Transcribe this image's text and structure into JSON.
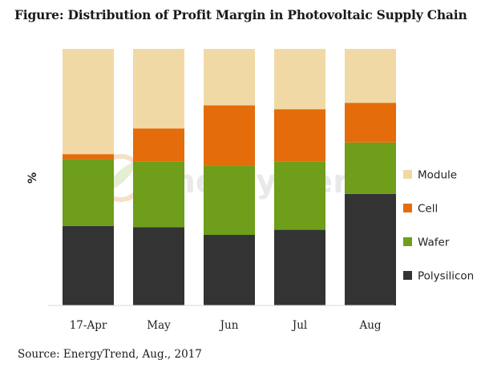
{
  "title": "Figure: Distribution of Profit Margin in Photovoltaic Supply Chain",
  "source": "Source: EnergyTrend, Aug., 2017",
  "watermark": "EnergyTrend",
  "chart_data": {
    "type": "bar",
    "stacked": true,
    "percent": true,
    "categories": [
      "17-Apr",
      "May",
      "Jun",
      "Jul",
      "Aug"
    ],
    "series": [
      {
        "name": "Polysilicon",
        "color": "#333333",
        "values": [
          31,
          30.5,
          27.5,
          29.5,
          43.5
        ]
      },
      {
        "name": "Wafer",
        "color": "#6e9e1a",
        "values": [
          26,
          25.5,
          27,
          26.5,
          20
        ]
      },
      {
        "name": "Cell",
        "color": "#e46c0a",
        "values": [
          2,
          13,
          23.5,
          20.5,
          15.5
        ]
      },
      {
        "name": "Module",
        "color": "#f1d9a6",
        "values": [
          41,
          31,
          22,
          23.5,
          21
        ]
      }
    ],
    "title": "Figure: Distribution of Profit Margin in Photovoltaic Supply Chain",
    "xlabel": "",
    "ylabel": "%",
    "ylim": [
      0,
      100
    ],
    "grid": false,
    "legend_position": "right",
    "legend_order": [
      "Module",
      "Cell",
      "Wafer",
      "Polysilicon"
    ]
  }
}
